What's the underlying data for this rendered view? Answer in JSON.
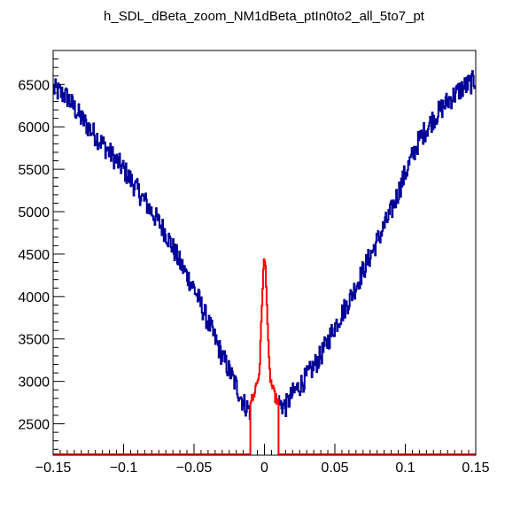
{
  "chart_data": {
    "type": "line",
    "title": "h_SDL_dBeta_zoom_NM1dBeta_ptIn0to2_all_5to7_pt",
    "xlabel": "",
    "ylabel": "",
    "xlim": [
      -0.15,
      0.15
    ],
    "ylim": [
      2130,
      6900
    ],
    "x_ticks": [
      -0.15,
      -0.1,
      -0.05,
      0,
      0.05,
      0.1,
      0.15
    ],
    "x_tick_labels": [
      "−0.15",
      "−0.1",
      "−0.05",
      "0",
      "0.05",
      "0.1",
      "0.15"
    ],
    "y_ticks": [
      2500,
      3000,
      3500,
      4000,
      4500,
      5000,
      5500,
      6000,
      6500
    ],
    "y_tick_labels": [
      "2500",
      "3000",
      "3500",
      "4000",
      "4500",
      "5000",
      "5500",
      "6000",
      "6500"
    ],
    "grid": false,
    "legend": "none",
    "series": [
      {
        "color": "#000099",
        "style": "step",
        "x": [
          -0.15,
          -0.14,
          -0.13,
          -0.12,
          -0.11,
          -0.1,
          -0.09,
          -0.08,
          -0.07,
          -0.06,
          -0.05,
          -0.04,
          -0.03,
          -0.02,
          -0.015,
          -0.01,
          0.01,
          0.015,
          0.02,
          0.03,
          0.04,
          0.05,
          0.06,
          0.07,
          0.08,
          0.09,
          0.1,
          0.11,
          0.12,
          0.13,
          0.14,
          0.15
        ],
        "y": [
          6450,
          6350,
          6100,
          5900,
          5700,
          5500,
          5250,
          5000,
          4750,
          4400,
          4100,
          3700,
          3300,
          2950,
          2750,
          2650,
          2750,
          2700,
          2850,
          3050,
          3300,
          3650,
          3950,
          4300,
          4650,
          5000,
          5450,
          5850,
          6100,
          6300,
          6450,
          6550
        ]
      },
      {
        "color": "#ff0000",
        "style": "step",
        "x": [
          -0.01,
          -0.008,
          -0.006,
          -0.004,
          -0.003,
          -0.002,
          -0.001,
          0,
          0.001,
          0.002,
          0.003,
          0.004,
          0.006,
          0.008,
          0.01
        ],
        "y": [
          2780,
          2800,
          2950,
          3050,
          3300,
          3800,
          4250,
          4450,
          4300,
          3800,
          3300,
          3050,
          2900,
          2800,
          2750
        ]
      }
    ]
  }
}
